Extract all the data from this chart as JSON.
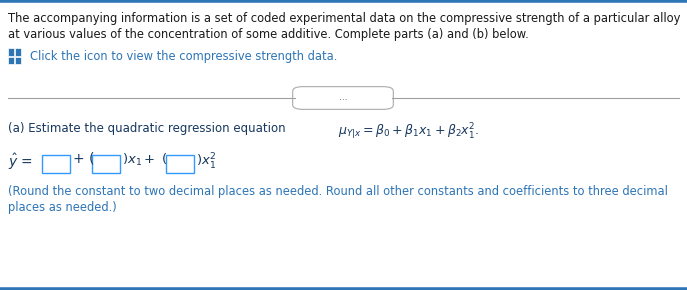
{
  "bg_color": "#ffffff",
  "top_border_color": "#2E75B6",
  "body_text_color": "#1A1A1A",
  "dark_blue_color": "#17375E",
  "link_color": "#2E75B6",
  "box_border_color": "#3399FF",
  "para1_line1": "The accompanying information is a set of coded experimental data on the compressive strength of a particular alloy",
  "para1_line2": "at various values of the concentration of some additive. Complete parts (a) and (b) below.",
  "icon_text": "Click the icon to view the compressive strength data.",
  "ellipsis_text": "...",
  "rounding_line1": "(Round the constant to two decimal places as needed. Round all other constants and coefficients to three decimal",
  "rounding_line2": "places as needed.)"
}
